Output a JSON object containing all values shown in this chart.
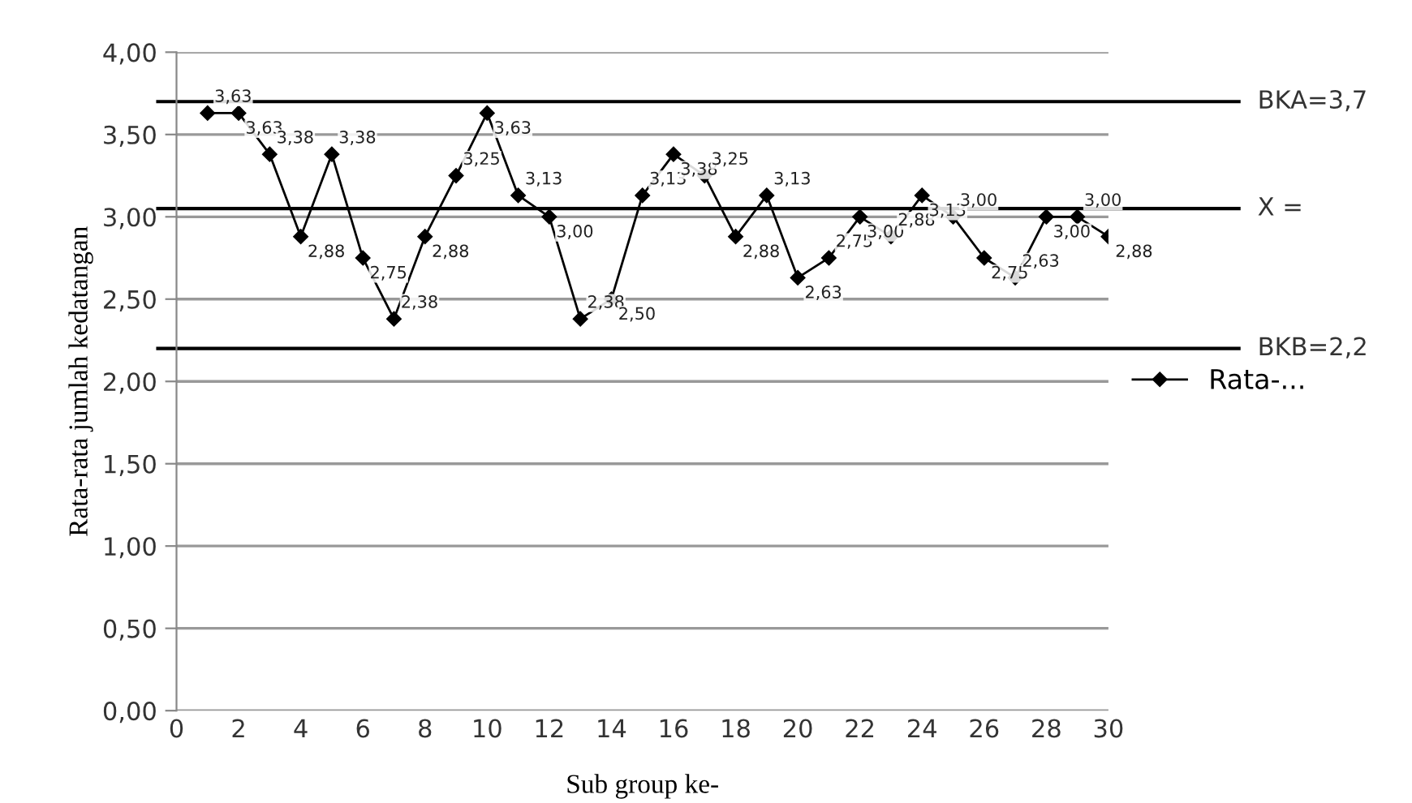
{
  "chart_data": {
    "type": "line",
    "xlabel": "Sub group ke-",
    "ylabel": "Rata-rata jumlah kedatangan",
    "x": [
      1,
      2,
      3,
      4,
      5,
      6,
      7,
      8,
      9,
      10,
      11,
      12,
      13,
      14,
      15,
      16,
      17,
      18,
      19,
      20,
      21,
      22,
      23,
      24,
      25,
      26,
      27,
      28,
      29,
      30
    ],
    "series": [
      {
        "name": "Rata-...",
        "color": "#000000",
        "values": [
          3.63,
          3.63,
          3.38,
          2.88,
          3.38,
          2.75,
          2.38,
          2.88,
          3.25,
          3.63,
          3.13,
          3.0,
          2.38,
          2.5,
          3.13,
          3.38,
          3.25,
          2.88,
          3.13,
          2.63,
          2.75,
          3.0,
          2.88,
          3.13,
          3.0,
          2.75,
          2.63,
          3.0,
          3.0,
          2.88
        ],
        "value_labels": [
          "3,63",
          "3,63",
          "3,38",
          "2,88",
          "3,38",
          "2,75",
          "2,38",
          "2,88",
          "3,25",
          "3,63",
          "3,13",
          "3,00",
          "2,38",
          "2,50",
          "3,13",
          "3,38",
          "3,25",
          "2,88",
          "3,13",
          "2,63",
          "2,75",
          "3,00",
          "2,88",
          "3,13",
          "3,00",
          "2,75",
          "2,63",
          "3,00",
          "3,00",
          "2,88"
        ]
      }
    ],
    "xlim": [
      0,
      30
    ],
    "xticks": [
      0,
      2,
      4,
      6,
      8,
      10,
      12,
      14,
      16,
      18,
      20,
      22,
      24,
      26,
      28,
      30
    ],
    "ylim": [
      0,
      4
    ],
    "yticks": [
      {
        "value": 0,
        "label": "0,00"
      },
      {
        "value": 0.5,
        "label": "0,50"
      },
      {
        "value": 1,
        "label": "1,00"
      },
      {
        "value": 1.5,
        "label": "1,50"
      },
      {
        "value": 2,
        "label": "2,00"
      },
      {
        "value": 2.5,
        "label": "2,50"
      },
      {
        "value": 3,
        "label": "3,00"
      },
      {
        "value": 3.5,
        "label": "3,50"
      },
      {
        "value": 4,
        "label": "4,00"
      }
    ],
    "ref_lines": [
      {
        "axis": "y",
        "value": 3.7,
        "label": "BKA=3,7",
        "color": "#000000"
      },
      {
        "axis": "y",
        "value": 3.05,
        "label": "X =",
        "color": "#000000"
      },
      {
        "axis": "y",
        "value": 2.2,
        "label": "BKB=2,2",
        "color": "#000000"
      }
    ],
    "grid": "y",
    "legend": "right",
    "marker": "diamond",
    "line_style": "solid"
  }
}
